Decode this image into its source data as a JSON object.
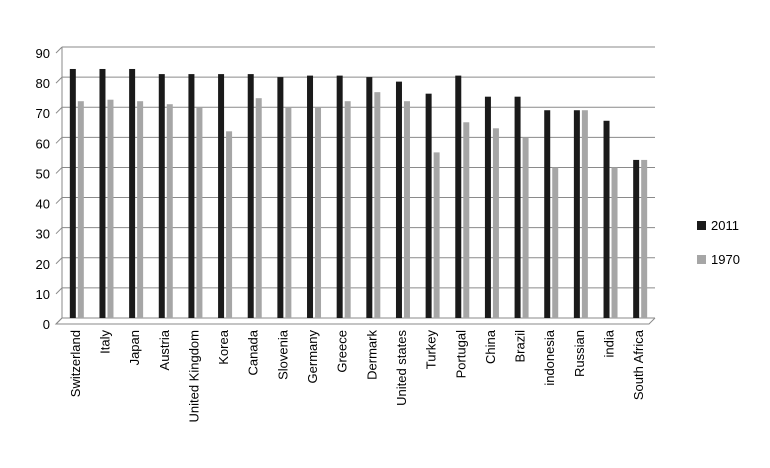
{
  "chart_data": {
    "type": "bar",
    "categories": [
      "Switzerland",
      "Italy",
      "Japan",
      "Austria",
      "United Kingdom",
      "Korea",
      "Canada",
      "Slovenia",
      "Germany",
      "Greece",
      "Dermark",
      "United states",
      "Turkey",
      "Portugal",
      "China",
      "Brazil",
      "indonesia",
      "Russian",
      "india",
      "South Africa"
    ],
    "series": [
      {
        "name": "2011",
        "color": "#1a1a1a",
        "values": [
          82.7,
          82.7,
          82.7,
          81,
          81,
          81,
          81,
          80,
          80.5,
          80.5,
          80,
          78.5,
          74.5,
          80.5,
          73.5,
          73.5,
          69,
          69,
          65.5,
          52.5
        ]
      },
      {
        "name": "1970",
        "color": "#a6a6a6",
        "values": [
          72,
          72.5,
          72,
          71,
          70,
          62,
          73,
          70,
          70,
          72,
          75,
          72,
          55,
          65,
          63,
          60,
          50,
          69,
          50,
          52.5
        ]
      }
    ],
    "ylim": [
      0,
      90
    ],
    "yticks": [
      0,
      10,
      20,
      30,
      40,
      50,
      60,
      70,
      80,
      90
    ],
    "grid": true,
    "legend": "right"
  }
}
